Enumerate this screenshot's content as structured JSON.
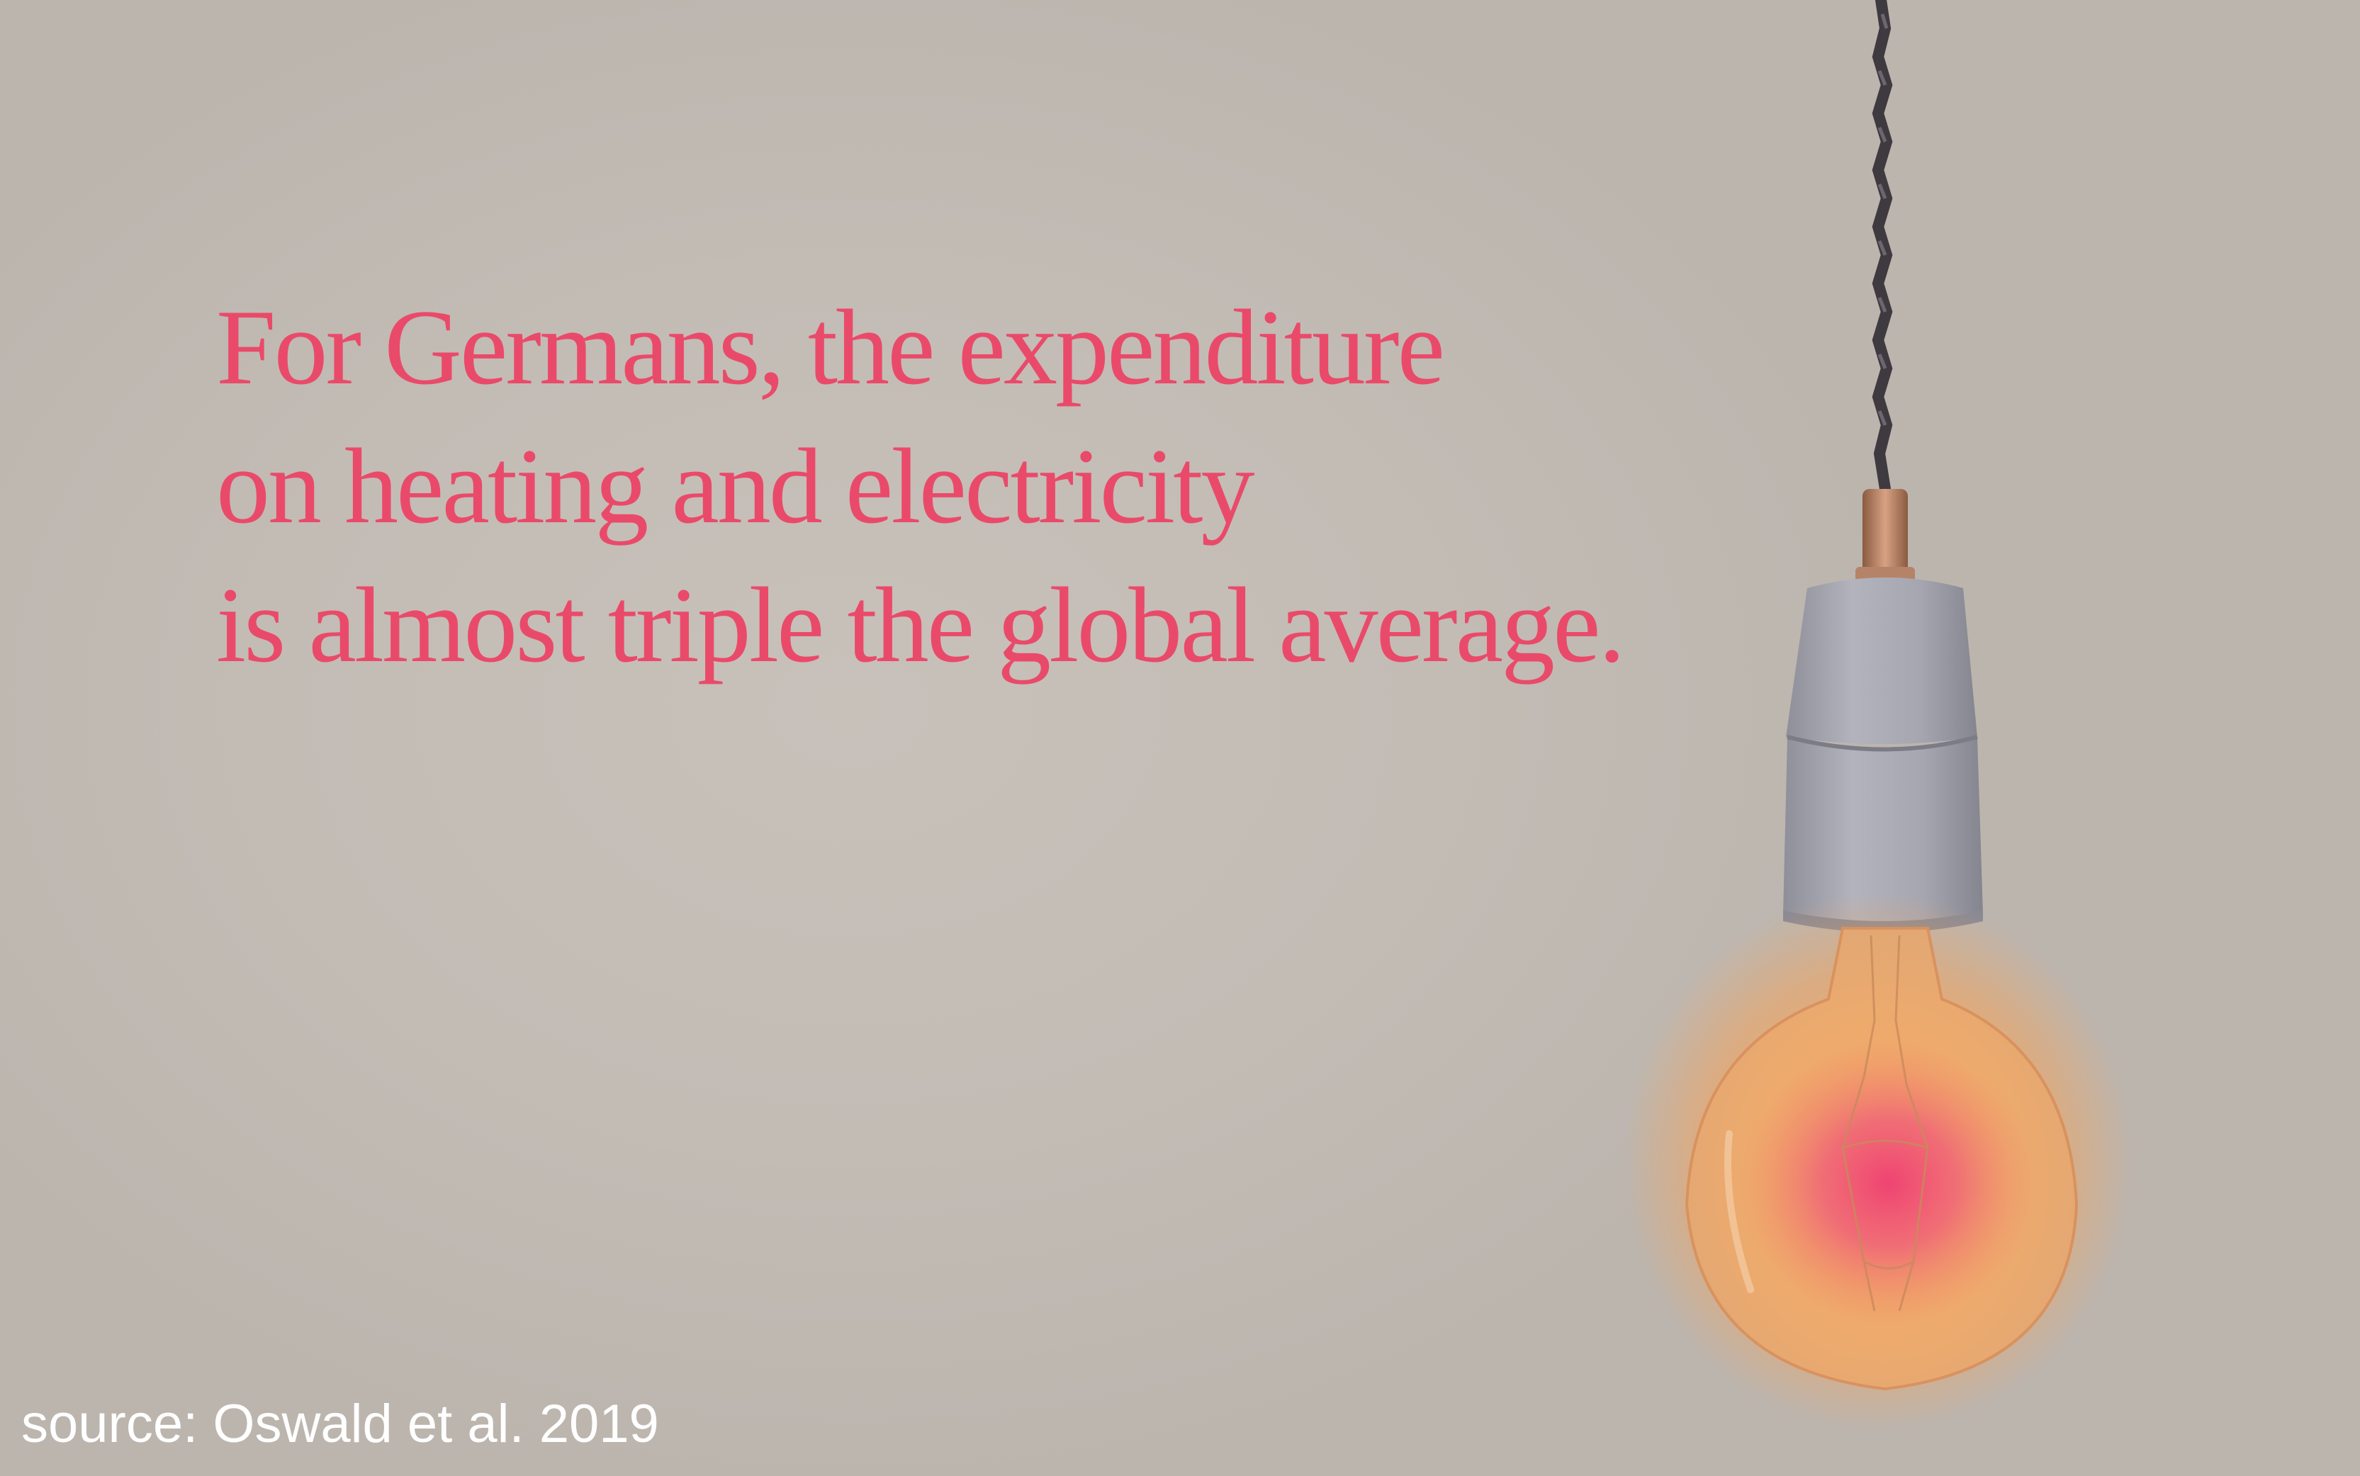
{
  "quote": {
    "lines": [
      "For Germans, the expenditure",
      "on heating and electricity",
      "is almost triple the global average."
    ]
  },
  "source": "source: Oswald et al. 2019",
  "colors": {
    "background": "#c4bdb6",
    "quote_text": "#ea4a6a",
    "source_text": "#ffffff",
    "bulb_glow": "#f5a45c",
    "bulb_hotspot": "#ef4a72",
    "socket": "#a9a9b3"
  },
  "illustration": "hanging-light-bulb-icon"
}
